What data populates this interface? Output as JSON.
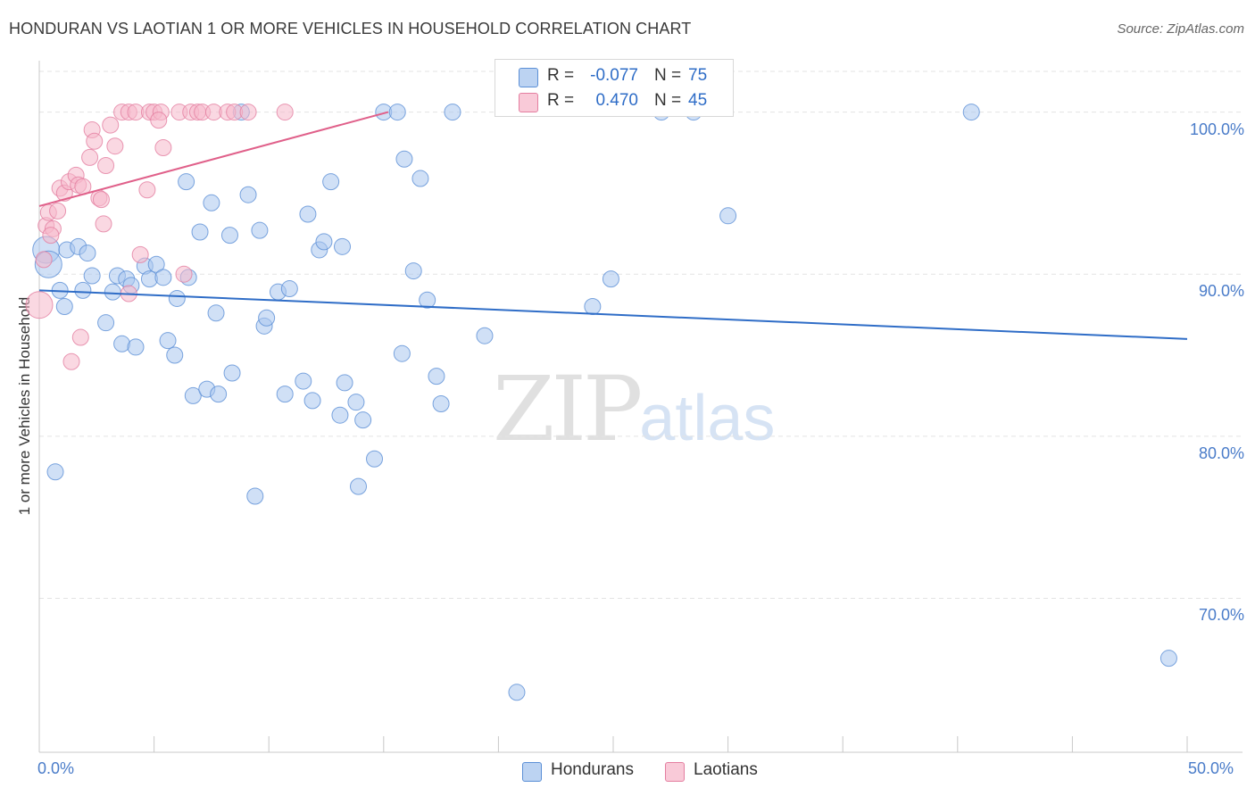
{
  "header": {
    "title": "HONDURAN VS LAOTIAN 1 OR MORE VEHICLES IN HOUSEHOLD CORRELATION CHART",
    "source": "Source: ZipAtlas.com"
  },
  "legend": {
    "rows": [
      {
        "r_label": "R =",
        "r_value": "-0.077",
        "n_label": "N =",
        "n_value": "75",
        "color": "#a9c6ef"
      },
      {
        "r_label": "R =",
        "r_value": "0.470",
        "n_label": "N =",
        "n_value": "45",
        "color": "#f6b8cb"
      }
    ]
  },
  "bottom_legend": {
    "hondurans": "Hondurans",
    "laotians": "Laotians"
  },
  "watermark": {
    "zip": "ZIP",
    "atlas": "atlas"
  },
  "chart_data": {
    "type": "scatter",
    "title": "HONDURAN VS LAOTIAN 1 OR MORE VEHICLES IN HOUSEHOLD CORRELATION CHART",
    "xlabel": "",
    "ylabel": "1 or more Vehicles in Household",
    "xlim": [
      0,
      50
    ],
    "ylim": [
      60.5,
      103.5
    ],
    "x_tick_labels": [
      "0.0%",
      "50.0%"
    ],
    "y_ticks": [
      {
        "value": 100,
        "label": "100.0%"
      },
      {
        "value": 90,
        "label": "90.0%"
      },
      {
        "value": 80,
        "label": "80.0%"
      },
      {
        "value": 70,
        "label": "70.0%"
      }
    ],
    "grid": true,
    "series": [
      {
        "name": "Hondurans",
        "color": "#a9c6ef",
        "stroke": "#5b8fd6",
        "r": -0.077,
        "n": 75,
        "trend": {
          "x": [
            0,
            50
          ],
          "y": [
            89.0,
            86.0
          ],
          "color": "#2f6dc7"
        },
        "points": [
          [
            0.3,
            91.5
          ],
          [
            0.4,
            90.6
          ],
          [
            0.7,
            77.8
          ],
          [
            0.9,
            89.0
          ],
          [
            1.1,
            88.0
          ],
          [
            1.2,
            91.5
          ],
          [
            1.7,
            91.7
          ],
          [
            1.9,
            89.0
          ],
          [
            2.1,
            91.3
          ],
          [
            2.3,
            89.9
          ],
          [
            2.9,
            87.0
          ],
          [
            3.2,
            88.9
          ],
          [
            3.4,
            89.9
          ],
          [
            3.6,
            85.7
          ],
          [
            3.8,
            89.7
          ],
          [
            4.0,
            89.3
          ],
          [
            4.2,
            85.5
          ],
          [
            4.6,
            90.5
          ],
          [
            4.8,
            89.7
          ],
          [
            5.1,
            90.6
          ],
          [
            5.4,
            89.8
          ],
          [
            5.6,
            85.9
          ],
          [
            5.9,
            85.0
          ],
          [
            6.0,
            88.5
          ],
          [
            6.4,
            95.7
          ],
          [
            6.5,
            89.8
          ],
          [
            6.7,
            82.5
          ],
          [
            7.0,
            92.6
          ],
          [
            7.3,
            82.9
          ],
          [
            7.5,
            94.4
          ],
          [
            7.7,
            87.6
          ],
          [
            7.8,
            82.6
          ],
          [
            8.3,
            92.4
          ],
          [
            8.4,
            83.9
          ],
          [
            8.8,
            100.0
          ],
          [
            9.1,
            94.9
          ],
          [
            9.4,
            76.3
          ],
          [
            9.6,
            92.7
          ],
          [
            9.8,
            86.8
          ],
          [
            9.9,
            87.3
          ],
          [
            10.4,
            88.9
          ],
          [
            10.7,
            82.6
          ],
          [
            10.9,
            89.1
          ],
          [
            11.5,
            83.4
          ],
          [
            11.7,
            93.7
          ],
          [
            11.9,
            82.2
          ],
          [
            12.2,
            91.5
          ],
          [
            12.4,
            92.0
          ],
          [
            12.7,
            95.7
          ],
          [
            13.1,
            81.3
          ],
          [
            13.2,
            91.7
          ],
          [
            13.3,
            83.3
          ],
          [
            13.8,
            82.1
          ],
          [
            13.9,
            76.9
          ],
          [
            14.1,
            81.0
          ],
          [
            14.6,
            78.6
          ],
          [
            15.0,
            100.0
          ],
          [
            15.6,
            100.0
          ],
          [
            15.8,
            85.1
          ],
          [
            15.9,
            97.1
          ],
          [
            16.3,
            90.2
          ],
          [
            16.6,
            95.9
          ],
          [
            16.9,
            88.4
          ],
          [
            17.3,
            83.7
          ],
          [
            17.5,
            82.0
          ],
          [
            18.0,
            100.0
          ],
          [
            19.4,
            86.2
          ],
          [
            20.8,
            64.2
          ],
          [
            24.1,
            88.0
          ],
          [
            24.9,
            89.7
          ],
          [
            27.1,
            100.0
          ],
          [
            28.5,
            100.0
          ],
          [
            30.0,
            93.6
          ],
          [
            40.6,
            100.0
          ],
          [
            49.2,
            66.3
          ]
        ]
      },
      {
        "name": "Laotians",
        "color": "#f6b8cb",
        "stroke": "#e47ea0",
        "r": 0.47,
        "n": 45,
        "trend": {
          "x": [
            0,
            15.2
          ],
          "y": [
            94.2,
            100.0
          ],
          "color": "#e0608a"
        },
        "points": [
          [
            0.0,
            88.1
          ],
          [
            0.2,
            90.9
          ],
          [
            0.3,
            93.0
          ],
          [
            0.4,
            93.8
          ],
          [
            0.6,
            92.8
          ],
          [
            0.8,
            93.9
          ],
          [
            0.9,
            95.3
          ],
          [
            1.1,
            95.0
          ],
          [
            1.3,
            95.7
          ],
          [
            1.6,
            96.1
          ],
          [
            1.7,
            95.5
          ],
          [
            1.9,
            95.4
          ],
          [
            2.2,
            97.2
          ],
          [
            2.3,
            98.9
          ],
          [
            2.4,
            98.2
          ],
          [
            2.6,
            94.7
          ],
          [
            2.8,
            93.1
          ],
          [
            2.9,
            96.7
          ],
          [
            3.1,
            99.2
          ],
          [
            3.3,
            97.9
          ],
          [
            3.9,
            88.8
          ],
          [
            1.4,
            84.6
          ],
          [
            1.8,
            86.1
          ],
          [
            3.6,
            100.0
          ],
          [
            3.9,
            100.0
          ],
          [
            4.2,
            100.0
          ],
          [
            4.7,
            95.2
          ],
          [
            4.4,
            91.2
          ],
          [
            4.8,
            100.0
          ],
          [
            5.0,
            100.0
          ],
          [
            5.3,
            100.0
          ],
          [
            5.2,
            99.5
          ],
          [
            5.4,
            97.8
          ],
          [
            6.1,
            100.0
          ],
          [
            6.3,
            90.0
          ],
          [
            6.6,
            100.0
          ],
          [
            6.9,
            100.0
          ],
          [
            7.1,
            100.0
          ],
          [
            7.6,
            100.0
          ],
          [
            8.2,
            100.0
          ],
          [
            8.5,
            100.0
          ],
          [
            9.1,
            100.0
          ],
          [
            10.7,
            100.0
          ],
          [
            0.5,
            92.4
          ],
          [
            2.7,
            94.6
          ]
        ]
      }
    ]
  }
}
